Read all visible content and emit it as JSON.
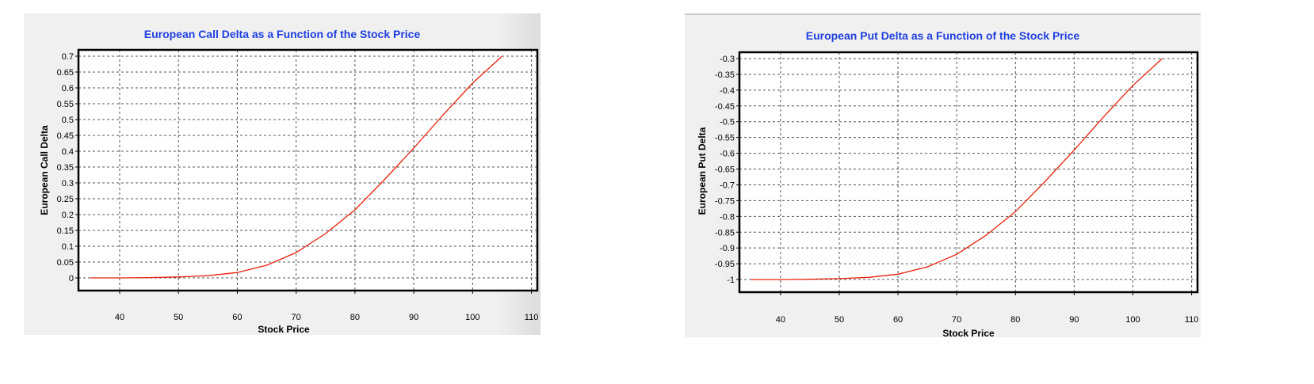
{
  "chart_data": [
    {
      "type": "line",
      "title": "European Call Delta as a Function of the Stock Price",
      "xlabel": "Stock Price",
      "ylabel": "European Call Delta",
      "xlim": [
        33,
        111
      ],
      "ylim": [
        -0.04,
        0.72
      ],
      "xticks": [
        40,
        50,
        60,
        70,
        80,
        90,
        100,
        110
      ],
      "yticks": [
        0,
        0.05,
        0.1,
        0.15,
        0.2,
        0.25,
        0.3,
        0.35,
        0.4,
        0.45,
        0.5,
        0.55,
        0.6,
        0.65,
        0.7
      ],
      "grid": true,
      "series": [
        {
          "color": "#e8200a",
          "x": [
            35,
            40,
            45,
            50,
            55,
            60,
            65,
            70,
            75,
            80,
            85,
            90,
            95,
            100,
            105
          ],
          "y": [
            0.0,
            0.0,
            0.001,
            0.003,
            0.007,
            0.017,
            0.04,
            0.08,
            0.14,
            0.215,
            0.31,
            0.41,
            0.515,
            0.615,
            0.7
          ]
        }
      ]
    },
    {
      "type": "line",
      "title": "European Put Delta as a Function of the Stock Price",
      "xlabel": "Stock Price",
      "ylabel": "European Put Delta",
      "xlim": [
        33,
        111
      ],
      "ylim": [
        -1.04,
        -0.28
      ],
      "xticks": [
        40,
        50,
        60,
        70,
        80,
        90,
        100,
        110
      ],
      "yticks": [
        -1,
        -0.95,
        -0.9,
        -0.85,
        -0.8,
        -0.75,
        -0.7,
        -0.65,
        -0.6,
        -0.55,
        -0.5,
        -0.45,
        -0.4,
        -0.35,
        -0.3
      ],
      "grid": true,
      "series": [
        {
          "color": "#e8200a",
          "x": [
            35,
            40,
            45,
            50,
            55,
            60,
            65,
            70,
            75,
            80,
            85,
            90,
            95,
            100,
            105
          ],
          "y": [
            -1.0,
            -1.0,
            -0.999,
            -0.997,
            -0.993,
            -0.983,
            -0.96,
            -0.92,
            -0.86,
            -0.785,
            -0.69,
            -0.59,
            -0.485,
            -0.385,
            -0.3
          ]
        }
      ]
    }
  ],
  "colors": {
    "title": "#1f3fe0",
    "line": "#e8200a",
    "plot_background": "#ffffff",
    "panel_background": "#f0f0f0",
    "grid": "#555555"
  }
}
